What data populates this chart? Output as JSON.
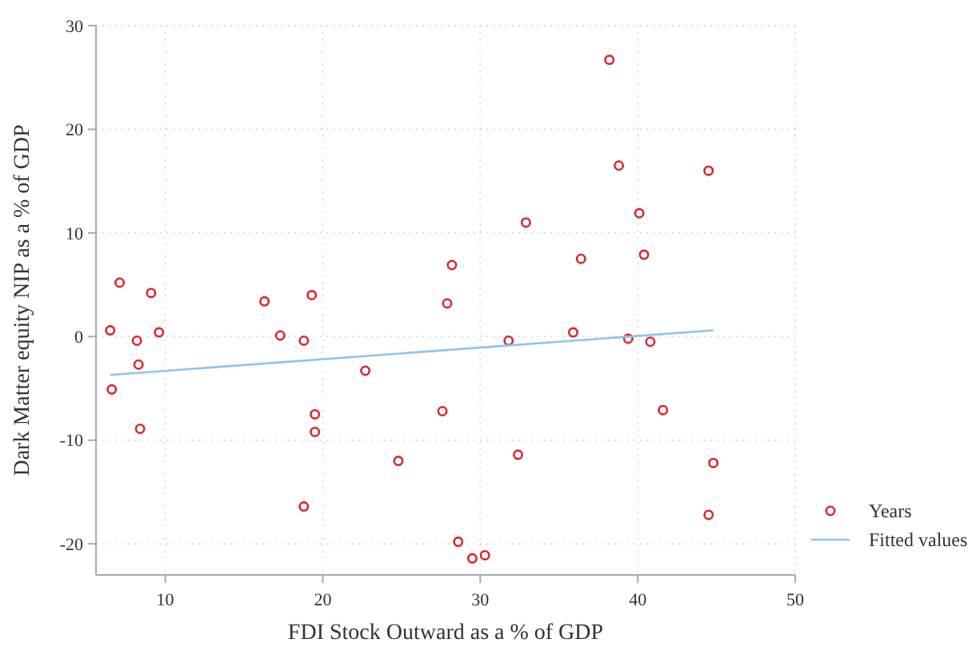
{
  "chart_data": {
    "type": "scatter",
    "xlabel": "FDI Stock Outward as a % of GDP",
    "ylabel": "Dark Matter equity NIP as a % of GDP",
    "xlim": [
      5.6,
      50
    ],
    "xticks": [
      10,
      20,
      30,
      40,
      50
    ],
    "ylim": [
      -23,
      30
    ],
    "yticks": [
      -20,
      -10,
      0,
      10,
      20,
      30
    ],
    "grid": true,
    "legend": "bottom right",
    "series": [
      {
        "name": "Years",
        "marker": "circle",
        "color": "#e0242b",
        "x": [
          6.5,
          7.1,
          6.6,
          8.2,
          8.3,
          8.4,
          9.1,
          9.6,
          16.3,
          17.3,
          18.8,
          19.3,
          19.5,
          19.5,
          18.8,
          22.7,
          24.8,
          27.6,
          27.9,
          28.2,
          28.6,
          29.5,
          30.3,
          38.2,
          38.8,
          44.5,
          32.9,
          40.1,
          36.4,
          40.4,
          31.8,
          35.9,
          39.4,
          40.8,
          41.6,
          32.4,
          44.8,
          44.5
        ],
        "values": [
          0.6,
          5.2,
          -5.1,
          -0.4,
          -2.7,
          -8.9,
          4.2,
          0.4,
          3.4,
          0.1,
          -0.4,
          4.0,
          -7.5,
          -9.2,
          -16.4,
          -3.3,
          -12.0,
          -7.2,
          3.2,
          6.9,
          -19.8,
          -21.4,
          -21.1,
          26.7,
          16.5,
          16.0,
          11.0,
          11.9,
          7.5,
          7.9,
          -0.4,
          0.4,
          -0.2,
          -0.5,
          -7.1,
          -11.4,
          -12.2,
          -17.2
        ]
      },
      {
        "name": "Fitted values",
        "type": "line",
        "color": "#8ec3ea",
        "line_style": "solid",
        "x": [
          6.5,
          44.8
        ],
        "values": [
          -3.7,
          0.6
        ]
      }
    ]
  }
}
